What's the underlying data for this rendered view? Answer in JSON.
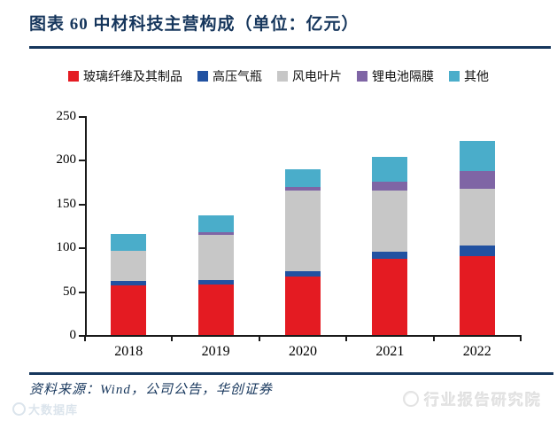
{
  "figure": {
    "title": "图表 60  中材科技主营构成（单位：亿元）"
  },
  "source": {
    "text": "资料来源：Wind，公司公告，华创证券"
  },
  "watermarks": {
    "left": "大数据库",
    "right": "行业报告研究院"
  },
  "colors": {
    "accent_navy": "#16365c",
    "axis": "#1a1a1a",
    "glass_fiber_red": "#e41b22",
    "gas_cylinder_blue": "#2151a1",
    "wind_blade_gray": "#c7c7c7",
    "battery_separator_purple": "#7f65a5",
    "other_teal": "#4aadca"
  },
  "chart_data": {
    "type": "bar",
    "stacked": true,
    "title": "中材科技主营构成",
    "unit": "亿元",
    "categories": [
      "2018",
      "2019",
      "2020",
      "2021",
      "2022"
    ],
    "series": [
      {
        "name": "玻璃纤维及其制品",
        "color": "#e41b22",
        "values": [
          57,
          57.5,
          67,
          87,
          90
        ]
      },
      {
        "name": "高压气瓶",
        "color": "#2151a1",
        "values": [
          5,
          5,
          5.5,
          8,
          12
        ]
      },
      {
        "name": "风电叶片",
        "color": "#c7c7c7",
        "values": [
          34.5,
          52,
          92,
          70,
          65
        ]
      },
      {
        "name": "锂电池隔膜",
        "color": "#7f65a5",
        "values": [
          0,
          2.5,
          4.5,
          10,
          20
        ]
      },
      {
        "name": "其他",
        "color": "#4aadca",
        "values": [
          18.5,
          19.5,
          20,
          28,
          35
        ]
      }
    ],
    "totals": [
      115,
      136.5,
      189,
      203,
      222
    ],
    "ylim": [
      0,
      250
    ],
    "yticks": [
      0,
      50,
      100,
      150,
      200,
      250
    ],
    "xlabel": "",
    "ylabel": "",
    "legend_position": "top",
    "grid": false
  }
}
